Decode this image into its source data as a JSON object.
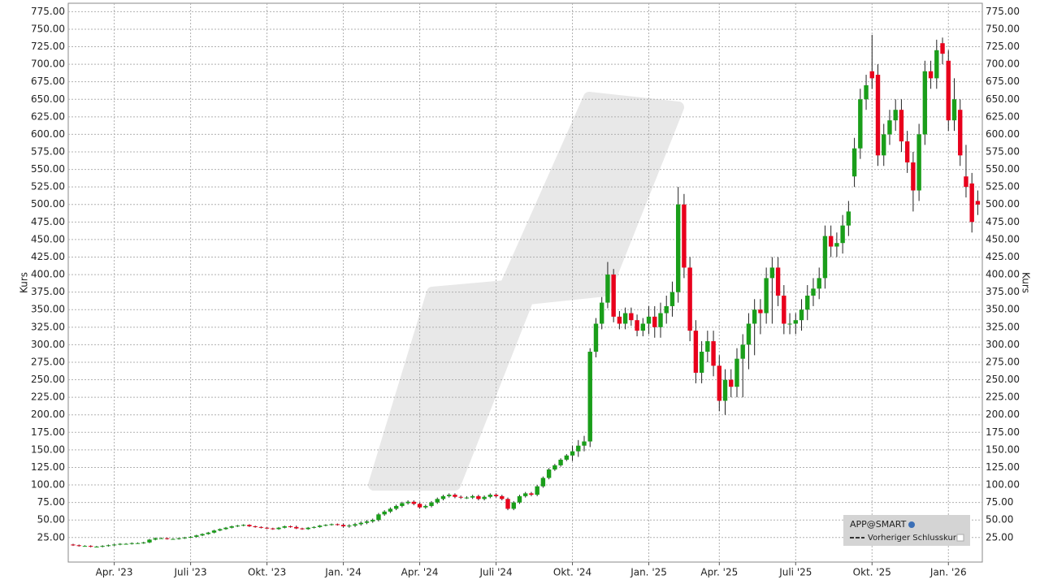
{
  "chart_data": {
    "type": "candlestick",
    "y_axis_label": "Kurs",
    "ylim": [
      -10,
      787
    ],
    "yticks": [
      {
        "value": 25,
        "label": "25.00"
      },
      {
        "value": 50,
        "label": "50.00"
      },
      {
        "value": 75,
        "label": "75.00"
      },
      {
        "value": 100,
        "label": "100.00"
      },
      {
        "value": 125,
        "label": "125.00"
      },
      {
        "value": 150,
        "label": "150.00"
      },
      {
        "value": 175,
        "label": "175.00"
      },
      {
        "value": 200,
        "label": "200.00"
      },
      {
        "value": 225,
        "label": "225.00"
      },
      {
        "value": 250,
        "label": "250.00"
      },
      {
        "value": 275,
        "label": "275.00"
      },
      {
        "value": 300,
        "label": "300.00"
      },
      {
        "value": 325,
        "label": "325.00"
      },
      {
        "value": 350,
        "label": "350.00"
      },
      {
        "value": 375,
        "label": "375.00"
      },
      {
        "value": 400,
        "label": "400.00"
      },
      {
        "value": 425,
        "label": "425.00"
      },
      {
        "value": 450,
        "label": "450.00"
      },
      {
        "value": 475,
        "label": "475.00"
      },
      {
        "value": 500,
        "label": "500.00"
      },
      {
        "value": 525,
        "label": "525.00"
      },
      {
        "value": 550,
        "label": "550.00"
      },
      {
        "value": 575,
        "label": "575.00"
      },
      {
        "value": 600,
        "label": "600.00"
      },
      {
        "value": 625,
        "label": "625.00"
      },
      {
        "value": 650,
        "label": "650.00"
      },
      {
        "value": 675,
        "label": "675.00"
      },
      {
        "value": 700,
        "label": "700.00"
      },
      {
        "value": 725,
        "label": "725.00"
      },
      {
        "value": 750,
        "label": "750.00"
      },
      {
        "value": 775,
        "label": "775.00"
      }
    ],
    "grid": true,
    "categories": [
      null,
      null,
      null,
      null,
      null,
      null,
      null,
      "Apr. '23",
      null,
      null,
      null,
      null,
      null,
      null,
      null,
      null,
      null,
      null,
      null,
      null,
      "Juli '23",
      null,
      null,
      null,
      null,
      null,
      null,
      null,
      null,
      null,
      null,
      null,
      null,
      "Okt. '23",
      null,
      null,
      null,
      null,
      null,
      null,
      null,
      null,
      null,
      null,
      null,
      null,
      "Jan. '24",
      null,
      null,
      null,
      null,
      null,
      null,
      null,
      null,
      null,
      null,
      null,
      null,
      "Apr. '24",
      null,
      null,
      null,
      null,
      null,
      null,
      null,
      null,
      null,
      null,
      null,
      null,
      "Juli '24",
      null,
      null,
      null,
      null,
      null,
      null,
      null,
      null,
      null,
      null,
      null,
      null,
      "Okt. '24",
      null,
      null,
      null,
      null,
      null,
      null,
      null,
      null,
      null,
      null,
      null,
      null,
      "Jan. '25",
      null,
      null,
      null,
      null,
      null,
      null,
      null,
      null,
      null,
      null,
      null,
      "Apr. '25",
      null,
      null,
      null,
      null,
      null,
      null,
      null,
      null,
      null,
      null,
      null,
      null,
      "Juli '25",
      null,
      null,
      null,
      null,
      null,
      null,
      null,
      null,
      null,
      null,
      null,
      null,
      "Okt. '25",
      null,
      null,
      null,
      null,
      null,
      null,
      null,
      null,
      null,
      null,
      null,
      null,
      "Jan. '26",
      null,
      null,
      null,
      null,
      null
    ],
    "series": [
      {
        "name": "APP@SMART",
        "up_color": "#1a9e1a",
        "down_color": "#e8001c",
        "open": [
          15,
          14,
          13,
          13,
          12,
          12,
          13,
          14,
          15,
          16,
          16,
          17,
          17,
          18,
          22,
          24,
          24,
          23,
          23,
          24,
          25,
          26,
          28,
          30,
          32,
          35,
          37,
          39,
          41,
          42,
          43,
          41,
          40,
          39,
          38,
          37,
          39,
          41,
          40,
          38,
          37,
          39,
          40,
          42,
          43,
          44,
          43,
          41,
          42,
          44,
          46,
          48,
          50,
          58,
          62,
          66,
          70,
          74,
          76,
          73,
          68,
          70,
          75,
          80,
          84,
          86,
          83,
          82,
          82,
          84,
          80,
          83,
          86,
          84,
          80,
          66,
          75,
          84,
          88,
          86,
          98,
          110,
          122,
          128,
          136,
          142,
          148,
          156,
          162,
          290,
          330,
          360,
          400,
          340,
          330,
          345,
          335,
          320,
          330,
          340,
          325,
          345,
          355,
          375,
          500,
          410,
          320,
          260,
          290,
          305,
          270,
          220,
          250,
          240,
          280,
          300,
          330,
          350,
          345,
          395,
          410,
          370,
          330,
          330,
          335,
          350,
          370,
          380,
          395,
          455,
          440,
          445,
          470,
          540,
          580,
          650,
          690,
          685,
          570,
          600,
          620,
          635,
          590,
          560,
          520,
          600,
          690,
          680,
          730,
          705,
          620,
          635,
          540,
          530,
          505
        ],
        "high": [
          16,
          15,
          14,
          14,
          13,
          14,
          15,
          16,
          17,
          17,
          18,
          18,
          19,
          23,
          25,
          25,
          25,
          24,
          25,
          26,
          27,
          29,
          31,
          33,
          36,
          38,
          40,
          42,
          43,
          44,
          44,
          42,
          41,
          40,
          39,
          40,
          42,
          42,
          42,
          39,
          40,
          41,
          43,
          44,
          45,
          45,
          45,
          44,
          46,
          48,
          50,
          52,
          60,
          64,
          68,
          72,
          76,
          78,
          78,
          75,
          72,
          77,
          82,
          86,
          88,
          88,
          85,
          84,
          86,
          86,
          85,
          88,
          88,
          86,
          82,
          77,
          86,
          90,
          90,
          100,
          112,
          124,
          130,
          138,
          144,
          156,
          164,
          170,
          295,
          338,
          368,
          418,
          408,
          348,
          353,
          353,
          343,
          338,
          355,
          355,
          360,
          370,
          390,
          525,
          515,
          425,
          335,
          305,
          320,
          320,
          285,
          265,
          265,
          295,
          315,
          345,
          365,
          365,
          410,
          425,
          425,
          385,
          345,
          345,
          365,
          385,
          395,
          410,
          470,
          470,
          460,
          485,
          505,
          595,
          665,
          685,
          742,
          700,
          615,
          635,
          650,
          650,
          605,
          575,
          615,
          705,
          705,
          735,
          738,
          720,
          680,
          650,
          585,
          545,
          520
        ],
        "low": [
          13,
          12,
          12,
          11,
          11,
          11,
          12,
          13,
          14,
          15,
          15,
          16,
          16,
          17,
          21,
          23,
          22,
          22,
          22,
          23,
          24,
          25,
          27,
          29,
          31,
          34,
          36,
          38,
          40,
          41,
          40,
          39,
          38,
          37,
          36,
          36,
          38,
          39,
          37,
          36,
          36,
          38,
          39,
          41,
          42,
          42,
          39,
          39,
          40,
          42,
          44,
          46,
          48,
          56,
          60,
          64,
          68,
          72,
          71,
          66,
          66,
          68,
          73,
          78,
          82,
          81,
          80,
          80,
          80,
          78,
          78,
          81,
          82,
          78,
          64,
          64,
          73,
          82,
          84,
          84,
          96,
          108,
          120,
          126,
          134,
          134,
          140,
          148,
          154,
          282,
          322,
          352,
          332,
          322,
          322,
          327,
          312,
          312,
          315,
          310,
          310,
          330,
          340,
          360,
          395,
          305,
          245,
          245,
          275,
          255,
          205,
          200,
          225,
          225,
          225,
          265,
          285,
          315,
          330,
          330,
          355,
          315,
          315,
          315,
          320,
          335,
          355,
          365,
          380,
          425,
          425,
          430,
          455,
          525,
          565,
          635,
          665,
          555,
          555,
          585,
          605,
          575,
          545,
          490,
          505,
          585,
          665,
          665,
          700,
          605,
          605,
          555,
          510,
          460,
          485
        ],
        "close": [
          14,
          13,
          13,
          12,
          12,
          13,
          14,
          15,
          16,
          16,
          17,
          17,
          18,
          22,
          24,
          24,
          23,
          23,
          24,
          25,
          26,
          28,
          30,
          32,
          35,
          37,
          39,
          41,
          42,
          43,
          41,
          40,
          39,
          38,
          37,
          39,
          41,
          40,
          38,
          37,
          39,
          40,
          42,
          43,
          44,
          43,
          41,
          42,
          44,
          46,
          48,
          50,
          58,
          62,
          66,
          70,
          74,
          76,
          73,
          68,
          70,
          75,
          80,
          84,
          86,
          83,
          82,
          82,
          84,
          80,
          83,
          86,
          84,
          80,
          66,
          75,
          84,
          88,
          86,
          98,
          110,
          122,
          128,
          136,
          142,
          148,
          156,
          162,
          290,
          330,
          360,
          400,
          340,
          330,
          345,
          335,
          320,
          330,
          340,
          325,
          345,
          355,
          375,
          500,
          410,
          320,
          260,
          290,
          305,
          270,
          220,
          250,
          240,
          280,
          300,
          330,
          350,
          345,
          395,
          410,
          370,
          330,
          330,
          335,
          350,
          370,
          380,
          395,
          455,
          440,
          445,
          470,
          490,
          580,
          650,
          670,
          680,
          570,
          600,
          620,
          635,
          590,
          560,
          520,
          600,
          690,
          680,
          720,
          715,
          620,
          650,
          570,
          525,
          475,
          500
        ]
      }
    ],
    "reference_line": {
      "name": "Vorheriger Schlusskurs"
    }
  }
}
